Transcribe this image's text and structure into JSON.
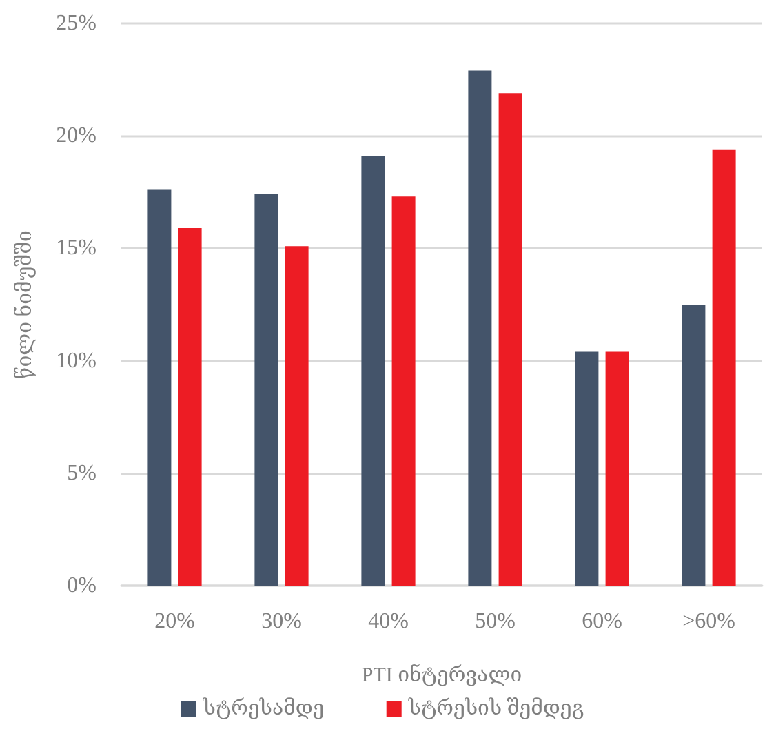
{
  "chart_data": {
    "type": "bar",
    "xlabel": "PTI ინტერვალი",
    "ylabel": "წილი ნიმუშში",
    "categories": [
      "20%",
      "30%",
      "40%",
      "50%",
      "60%",
      ">60%"
    ],
    "series": [
      {
        "name": "სტრესამდე",
        "color": "#44546a",
        "values": [
          17.6,
          17.4,
          19.1,
          22.9,
          10.4,
          12.5
        ]
      },
      {
        "name": "სტრესის შემდეგ",
        "color": "#ed1c24",
        "values": [
          15.9,
          15.1,
          17.3,
          21.9,
          10.4,
          19.4
        ]
      }
    ],
    "ylim": [
      0,
      25
    ],
    "yticks": [
      {
        "value": 0,
        "label": "0%"
      },
      {
        "value": 5,
        "label": "5%"
      },
      {
        "value": 10,
        "label": "10%"
      },
      {
        "value": 15,
        "label": "15%"
      },
      {
        "value": 20,
        "label": "20%"
      },
      {
        "value": 25,
        "label": "25%"
      }
    ],
    "grid": "y",
    "legend": "bottom"
  }
}
